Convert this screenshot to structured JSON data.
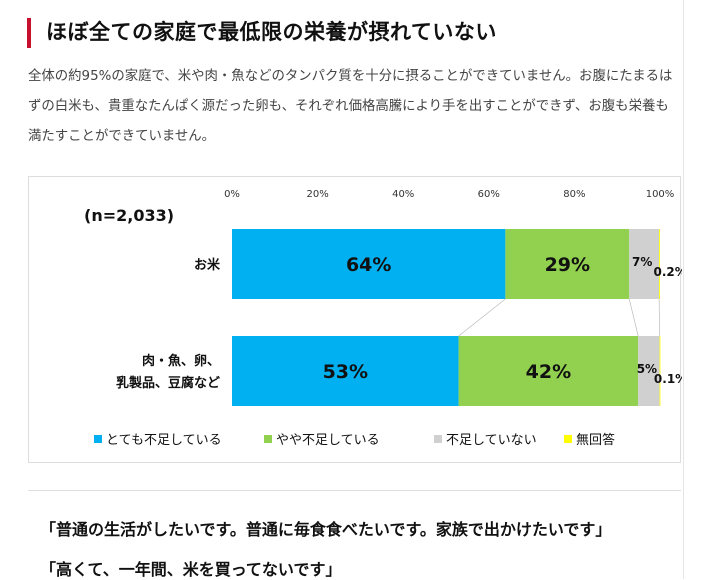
{
  "heading": "ほぼ全ての家庭で最低限の栄養が摂れていない",
  "paragraph": "全体の約95%の家庭で、米や肉・魚などのタンパク質を十分に摂ることができていません。お腹にたまるはずの白米も、貴重なたんぱく源だった卵も、それぞれ価格高騰により手を出すことができず、お腹も栄養も満たすことができていません。",
  "quotes": [
    "「普通の生活がしたいです。普通に毎食食べたいです。家族で出かけたいです」",
    "「高くて、一年間、米を買ってないです」"
  ],
  "chart_data": {
    "type": "bar",
    "stacked": true,
    "orientation": "horizontal",
    "annotation": "(n=2,033)",
    "categories": [
      [
        "お米"
      ],
      [
        "肉・魚、卵、",
        "乳製品、豆腐など"
      ]
    ],
    "series": [
      {
        "name": "とても不足している",
        "color": "#00b0f0",
        "values": [
          64,
          53
        ],
        "labels": [
          "64%",
          "53%"
        ]
      },
      {
        "name": "やや不足している",
        "color": "#92d050",
        "values": [
          29,
          42
        ],
        "labels": [
          "29%",
          "42%"
        ]
      },
      {
        "name": "不足していない",
        "color": "#d0d0d0",
        "values": [
          7,
          5
        ],
        "labels": [
          "7%",
          "5%"
        ]
      },
      {
        "name": "無回答",
        "color": "#ffff00",
        "values": [
          0.2,
          0.1
        ],
        "labels": [
          "0.2%",
          "0.1%"
        ]
      }
    ],
    "xticks": [
      "0%",
      "20%",
      "40%",
      "60%",
      "80%",
      "100%"
    ],
    "xlim": [
      0,
      100
    ],
    "legend": "bottom"
  }
}
